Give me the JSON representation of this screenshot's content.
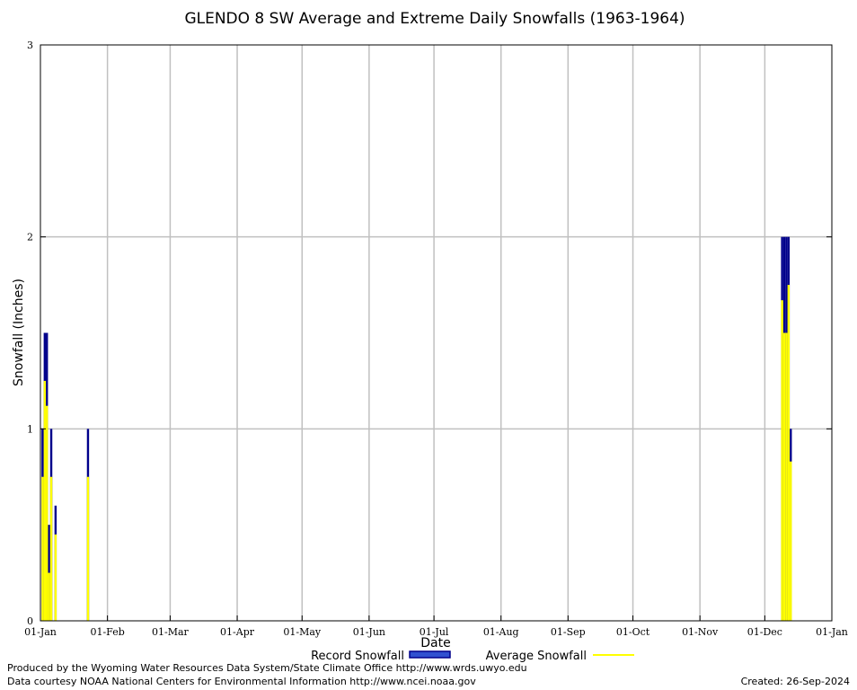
{
  "chart_data": {
    "type": "bar",
    "title": "GLENDO 8 SW Average and Extreme Daily Snowfalls (1963-1964)",
    "xlabel": "Date",
    "ylabel": "Snowfall (Inches)",
    "ylim": [
      0,
      3
    ],
    "yticks": [
      "0",
      "1",
      "2",
      "3"
    ],
    "xticks": [
      "01-Jan",
      "01-Feb",
      "01-Mar",
      "01-Apr",
      "01-May",
      "01-Jun",
      "01-Jul",
      "01-Aug",
      "01-Sep",
      "01-Oct",
      "01-Nov",
      "01-Dec",
      "01-Jan"
    ],
    "xtick_day_of_year": [
      1,
      32,
      61,
      92,
      122,
      153,
      183,
      214,
      245,
      275,
      306,
      336,
      367
    ],
    "grid": true,
    "legend_placement": "bottom",
    "series": [
      {
        "name": "Record Snowfall",
        "color": "#00008b",
        "x_day_of_year": [
          2,
          3,
          4,
          5,
          6,
          8,
          23,
          344,
          345,
          346,
          347,
          348
        ],
        "values": [
          1.0,
          1.5,
          1.5,
          0.5,
          1.0,
          0.6,
          1.0,
          2.0,
          2.0,
          2.0,
          2.0,
          1.0
        ]
      },
      {
        "name": "Average Snowfall",
        "color": "#ffff00",
        "x_day_of_year": [
          2,
          3,
          4,
          5,
          6,
          8,
          23,
          344,
          345,
          346,
          347,
          348
        ],
        "values": [
          0.75,
          1.25,
          1.12,
          0.25,
          0.75,
          0.45,
          0.75,
          1.67,
          1.5,
          1.5,
          1.75,
          0.83
        ]
      }
    ]
  },
  "footer": {
    "produced_by": "Produced by the Wyoming Water Resources Data System/State Climate Office http://www.wrds.uwyo.edu",
    "courtesy": "Data courtesy NOAA National Centers for Environmental Information http://www.ncei.noaa.gov",
    "created": "Created: 26-Sep-2024"
  }
}
